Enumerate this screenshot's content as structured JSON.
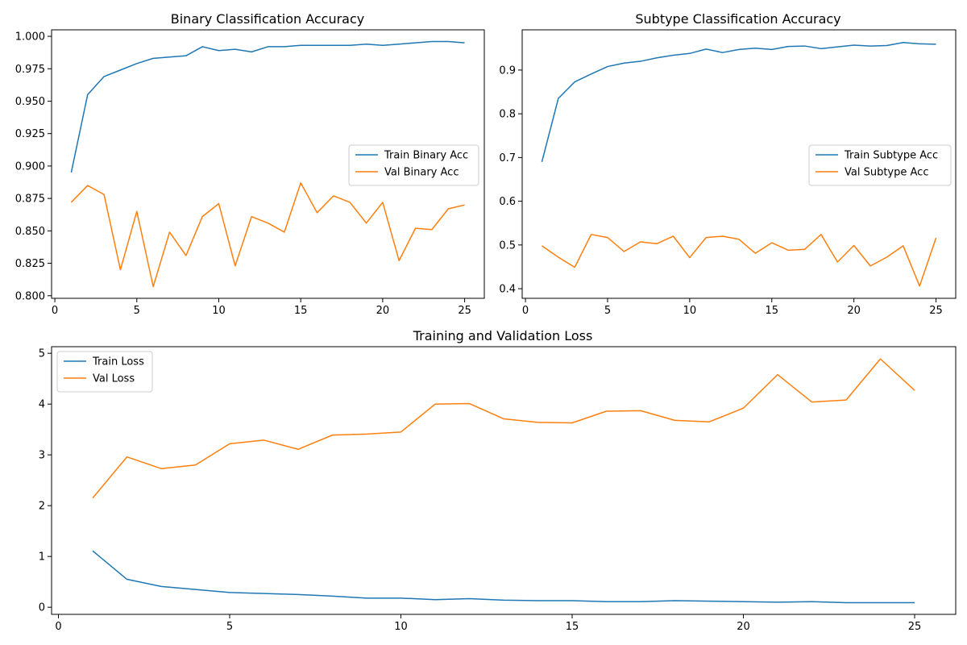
{
  "figure": {
    "colors": {
      "train": "#1f77b4",
      "val": "#ff7f0e",
      "axis": "#000000",
      "legend_border": "#cccccc"
    }
  },
  "chart_data": [
    {
      "id": "binary",
      "type": "line",
      "title": "Binary Classification Accuracy",
      "xlabel": "",
      "ylabel": "",
      "xlim": [
        -0.2,
        26.2
      ],
      "ylim": [
        0.798,
        1.005
      ],
      "xticks": [
        0,
        5,
        10,
        15,
        20,
        25
      ],
      "yticks": [
        0.8,
        0.825,
        0.85,
        0.875,
        0.9,
        0.925,
        0.95,
        0.975,
        1.0
      ],
      "ytick_labels": [
        "0.800",
        "0.825",
        "0.850",
        "0.875",
        "0.900",
        "0.925",
        "0.950",
        "0.975",
        "1.000"
      ],
      "grid": false,
      "legend_position": "center-right",
      "x": [
        1,
        2,
        3,
        4,
        5,
        6,
        7,
        8,
        9,
        10,
        11,
        12,
        13,
        14,
        15,
        16,
        17,
        18,
        19,
        20,
        21,
        22,
        23,
        24,
        25
      ],
      "series": [
        {
          "name": "Train Binary Acc",
          "color": "#1f77b4",
          "values": [
            0.895,
            0.955,
            0.969,
            0.974,
            0.979,
            0.983,
            0.984,
            0.985,
            0.992,
            0.989,
            0.99,
            0.988,
            0.992,
            0.992,
            0.993,
            0.993,
            0.993,
            0.993,
            0.994,
            0.993,
            0.994,
            0.995,
            0.996,
            0.996,
            0.995
          ]
        },
        {
          "name": "Val Binary Acc",
          "color": "#ff7f0e",
          "values": [
            0.872,
            0.885,
            0.878,
            0.82,
            0.865,
            0.807,
            0.849,
            0.831,
            0.861,
            0.871,
            0.823,
            0.861,
            0.856,
            0.849,
            0.887,
            0.864,
            0.877,
            0.872,
            0.856,
            0.872,
            0.827,
            0.852,
            0.851,
            0.867,
            0.87
          ]
        }
      ]
    },
    {
      "id": "subtype",
      "type": "line",
      "title": "Subtype Classification Accuracy",
      "xlabel": "",
      "ylabel": "",
      "xlim": [
        -0.2,
        26.2
      ],
      "ylim": [
        0.378,
        0.992
      ],
      "xticks": [
        0,
        5,
        10,
        15,
        20,
        25
      ],
      "yticks": [
        0.4,
        0.5,
        0.6,
        0.7,
        0.8,
        0.9
      ],
      "ytick_labels": [
        "0.4",
        "0.5",
        "0.6",
        "0.7",
        "0.8",
        "0.9"
      ],
      "grid": false,
      "legend_position": "center-right",
      "x": [
        1,
        2,
        3,
        4,
        5,
        6,
        7,
        8,
        9,
        10,
        11,
        12,
        13,
        14,
        15,
        16,
        17,
        18,
        19,
        20,
        21,
        22,
        23,
        24,
        25
      ],
      "series": [
        {
          "name": "Train Subtype Acc",
          "color": "#1f77b4",
          "values": [
            0.69,
            0.835,
            0.873,
            0.891,
            0.908,
            0.916,
            0.92,
            0.928,
            0.934,
            0.938,
            0.948,
            0.94,
            0.947,
            0.95,
            0.947,
            0.954,
            0.955,
            0.949,
            0.953,
            0.957,
            0.955,
            0.956,
            0.963,
            0.96,
            0.959
          ]
        },
        {
          "name": "Val Subtype Acc",
          "color": "#ff7f0e",
          "values": [
            0.498,
            0.472,
            0.449,
            0.524,
            0.517,
            0.485,
            0.507,
            0.503,
            0.52,
            0.471,
            0.517,
            0.52,
            0.513,
            0.481,
            0.505,
            0.488,
            0.49,
            0.524,
            0.461,
            0.499,
            0.452,
            0.472,
            0.498,
            0.406,
            0.516
          ]
        }
      ]
    },
    {
      "id": "loss",
      "type": "line",
      "title": "Training and Validation Loss",
      "xlabel": "",
      "ylabel": "",
      "xlim": [
        -0.2,
        26.2
      ],
      "ylim": [
        -0.14,
        5.13
      ],
      "xticks": [
        0,
        5,
        10,
        15,
        20,
        25
      ],
      "yticks": [
        0,
        1,
        2,
        3,
        4,
        5
      ],
      "ytick_labels": [
        "0",
        "1",
        "2",
        "3",
        "4",
        "5"
      ],
      "grid": false,
      "legend_position": "upper-left",
      "x": [
        1,
        2,
        3,
        4,
        5,
        6,
        7,
        8,
        9,
        10,
        11,
        12,
        13,
        14,
        15,
        16,
        17,
        18,
        19,
        20,
        21,
        22,
        23,
        24,
        25
      ],
      "series": [
        {
          "name": "Train Loss",
          "color": "#1f77b4",
          "values": [
            1.11,
            0.55,
            0.41,
            0.35,
            0.29,
            0.27,
            0.25,
            0.22,
            0.18,
            0.18,
            0.15,
            0.17,
            0.14,
            0.13,
            0.13,
            0.11,
            0.11,
            0.13,
            0.12,
            0.11,
            0.1,
            0.11,
            0.09,
            0.09,
            0.09
          ]
        },
        {
          "name": "Val Loss",
          "color": "#ff7f0e",
          "values": [
            2.15,
            2.96,
            2.73,
            2.8,
            3.22,
            3.29,
            3.11,
            3.39,
            3.41,
            3.45,
            4.0,
            4.01,
            3.71,
            3.64,
            3.63,
            3.86,
            3.87,
            3.68,
            3.65,
            3.92,
            4.58,
            4.04,
            4.08,
            4.89,
            4.27
          ]
        }
      ]
    }
  ]
}
